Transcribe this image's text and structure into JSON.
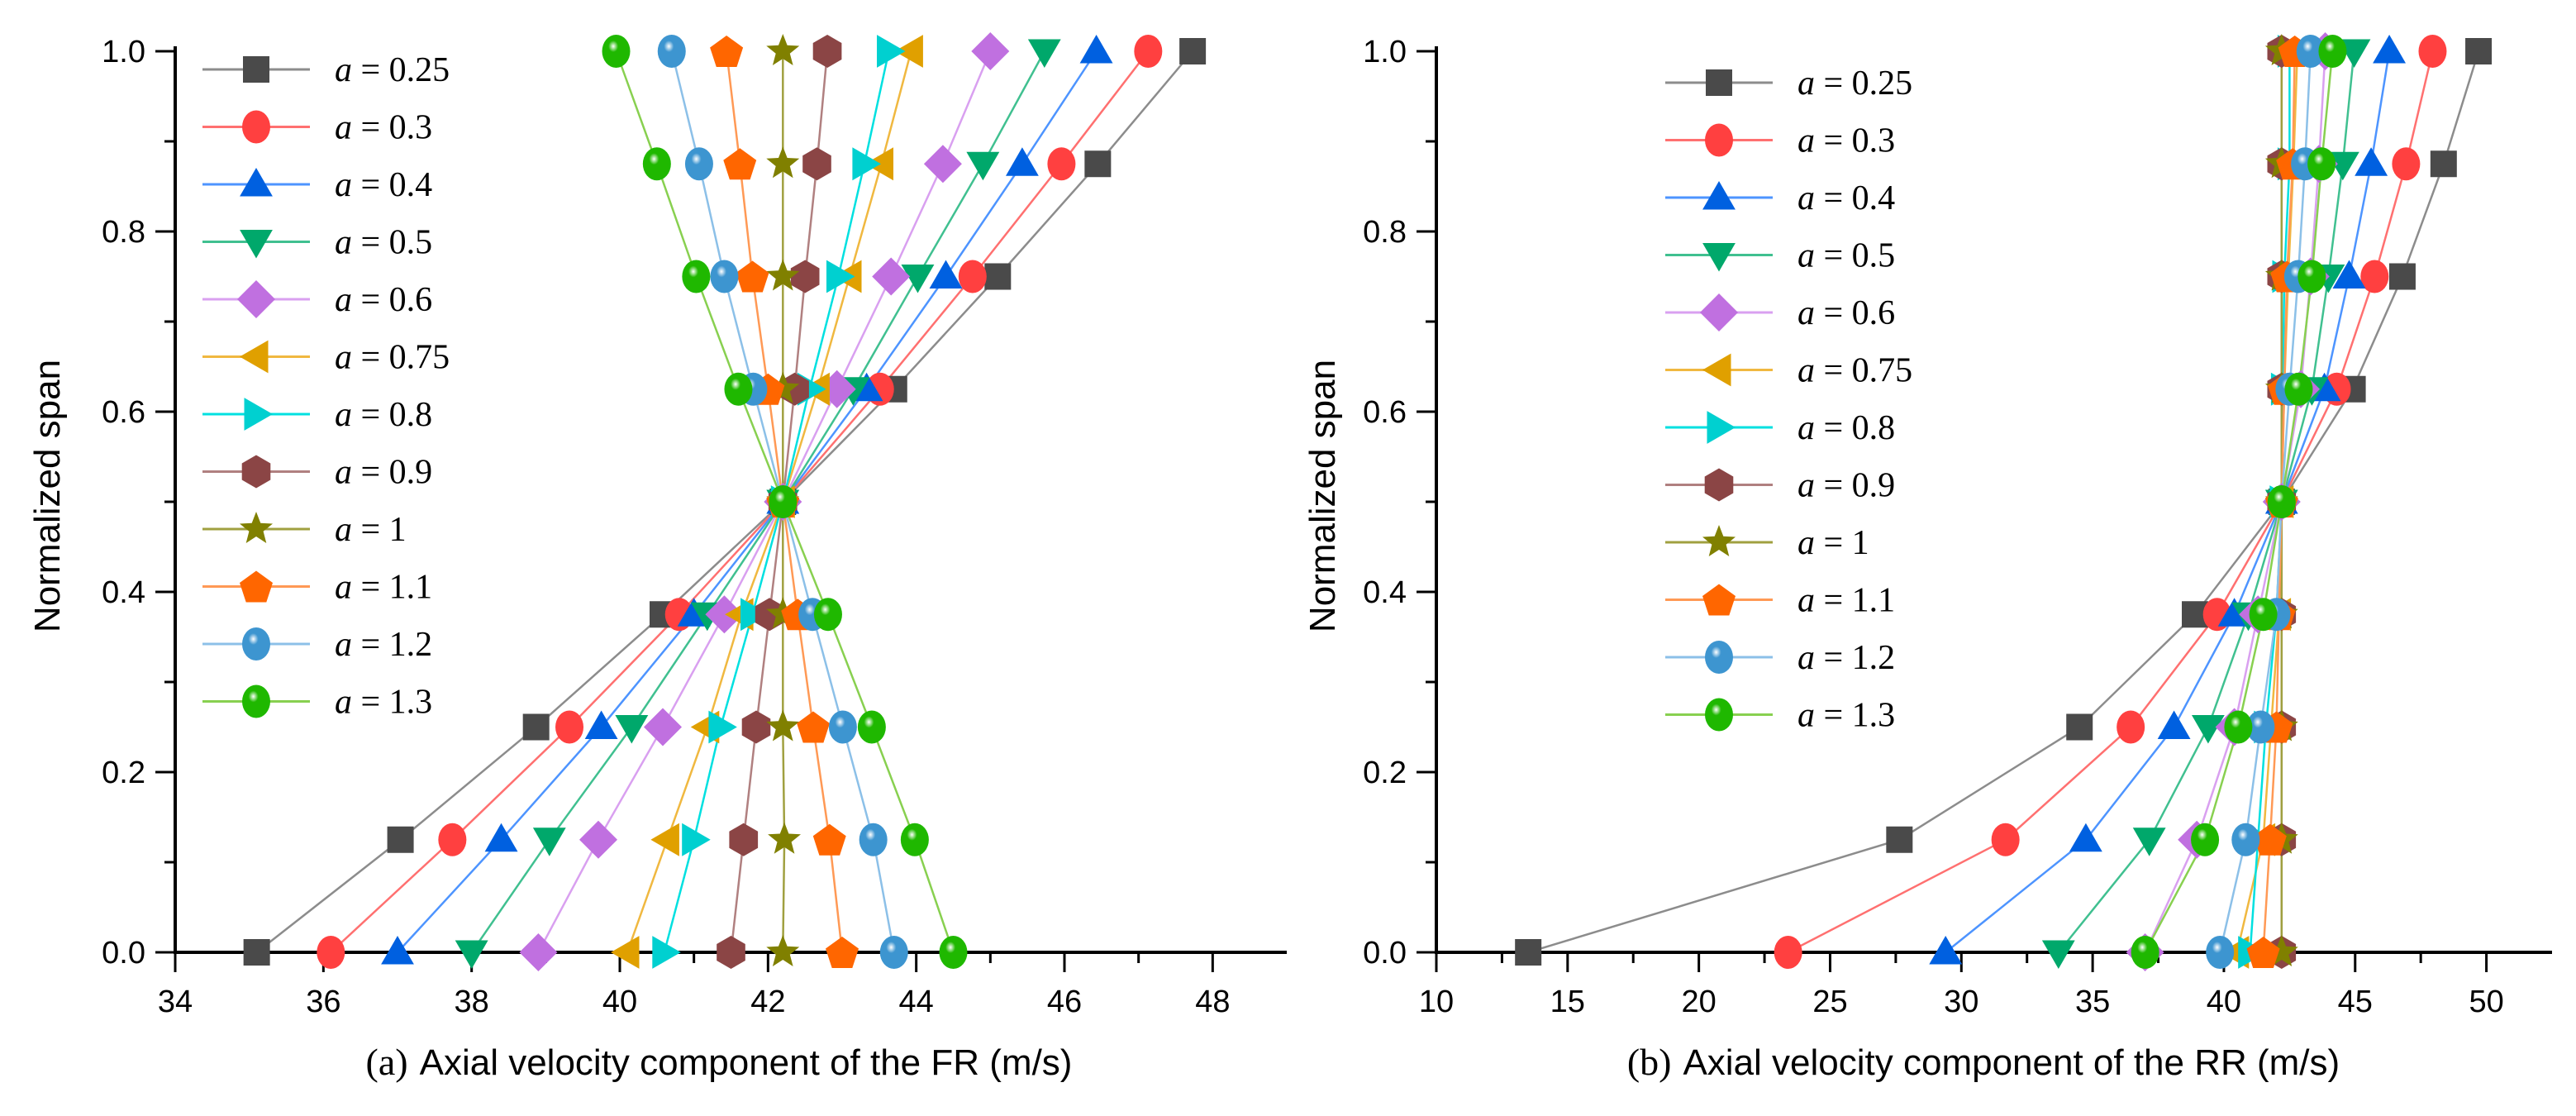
{
  "chart_data": [
    {
      "type": "line",
      "panel_id": "(a)",
      "title": "Axial velocity component of the FR (m/s)",
      "xlabel": "Axial velocity component of the FR (m/s)",
      "ylabel": "Normalized span",
      "xlim": [
        34,
        49
      ],
      "ylim": [
        0,
        1.0
      ],
      "xticks": [
        "34",
        "36",
        "38",
        "40",
        "42",
        "44",
        "46",
        "48"
      ],
      "xtick_values": [
        34,
        36,
        38,
        40,
        42,
        44,
        46,
        48
      ],
      "yticks": [
        "0.0",
        "0.2",
        "0.4",
        "0.6",
        "0.8",
        "1.0"
      ],
      "ytick_values": [
        0,
        0.2,
        0.4,
        0.6,
        0.8,
        1.0
      ],
      "legend_placement": "top-left",
      "y": [
        0,
        0.125,
        0.25,
        0.375,
        0.5,
        0.625,
        0.75,
        0.875,
        1.0
      ],
      "series": [
        {
          "name": "a = 0.25",
          "marker": "square",
          "color": "#4a4a4a",
          "line": "#8c8c8c",
          "x": [
            35.1,
            37.04,
            38.87,
            40.58,
            42.2,
            43.7,
            45.1,
            46.45,
            47.73
          ]
        },
        {
          "name": "a = 0.3",
          "marker": "circle",
          "color": "#ff4040",
          "line": "#ff7070",
          "x": [
            36.1,
            37.74,
            39.32,
            40.8,
            42.2,
            43.51,
            44.76,
            45.96,
            47.13
          ]
        },
        {
          "name": "a = 0.4",
          "marker": "triangle-up",
          "color": "#0060e0",
          "line": "#4d94ff",
          "x": [
            37.0,
            38.4,
            39.75,
            41.0,
            42.2,
            43.33,
            44.4,
            45.43,
            46.43
          ]
        },
        {
          "name": "a = 0.5",
          "marker": "triangle-down",
          "color": "#00a86b",
          "line": "#40c090",
          "x": [
            38.0,
            39.05,
            40.16,
            41.18,
            42.2,
            43.15,
            44.02,
            44.9,
            45.73
          ]
        },
        {
          "name": "a = 0.6",
          "marker": "diamond",
          "color": "#c070e0",
          "line": "#d9a0f0",
          "x": [
            38.9,
            39.71,
            40.58,
            41.41,
            42.2,
            42.93,
            43.66,
            44.36,
            45.0
          ]
        },
        {
          "name": "a = 0.75",
          "marker": "triangle-left",
          "color": "#e0a000",
          "line": "#f0b840",
          "x": [
            40.1,
            40.64,
            41.18,
            41.64,
            42.2,
            42.67,
            43.1,
            43.53,
            43.93
          ]
        },
        {
          "name": "a = 0.8",
          "marker": "triangle-right",
          "color": "#00d0d0",
          "line": "#00e0e0",
          "x": [
            40.6,
            41.0,
            41.36,
            41.79,
            42.2,
            42.56,
            42.95,
            43.3,
            43.63
          ]
        },
        {
          "name": "a = 0.9",
          "marker": "hexagon",
          "color": "#8b4545",
          "line": "#b08080",
          "x": [
            41.5,
            41.67,
            41.84,
            42.02,
            42.2,
            42.36,
            42.5,
            42.66,
            42.8
          ]
        },
        {
          "name": "a = 1",
          "marker": "star",
          "color": "#808000",
          "line": "#a0a040",
          "x": [
            42.2,
            42.22,
            42.2,
            42.2,
            42.2,
            42.2,
            42.2,
            42.2,
            42.2
          ]
        },
        {
          "name": "a = 1.1",
          "marker": "pentagon",
          "color": "#ff6600",
          "line": "#ff9955",
          "x": [
            43.0,
            42.83,
            42.61,
            42.4,
            42.2,
            42.0,
            41.79,
            41.62,
            41.44
          ]
        },
        {
          "name": "a = 1.2",
          "marker": "sphere",
          "color": "#3d95d0",
          "line": "#8cc0e8",
          "x": [
            43.7,
            43.42,
            43.01,
            42.6,
            42.2,
            41.8,
            41.41,
            41.07,
            40.7
          ]
        },
        {
          "name": "a = 1.3",
          "marker": "sphere",
          "color": "#1fb800",
          "line": "#88d050",
          "x": [
            44.5,
            43.98,
            43.4,
            42.81,
            42.2,
            41.6,
            41.03,
            40.5,
            39.95
          ]
        }
      ]
    },
    {
      "type": "line",
      "panel_id": "(b)",
      "title": "Axial velocity component of the RR (m/s)",
      "xlabel": "Axial velocity component of the RR (m/s)",
      "ylabel": "Normalized span",
      "xlim": [
        10,
        52.5
      ],
      "ylim": [
        0,
        1.0
      ],
      "xticks": [
        "10",
        "15",
        "20",
        "25",
        "30",
        "35",
        "40",
        "45",
        "50"
      ],
      "xtick_values": [
        10,
        15,
        20,
        25,
        30,
        35,
        40,
        45,
        50
      ],
      "yticks": [
        "0.0",
        "0.2",
        "0.4",
        "0.6",
        "0.8",
        "1.0"
      ],
      "ytick_values": [
        0,
        0.2,
        0.4,
        0.6,
        0.8,
        1.0
      ],
      "legend_placement": "top-center",
      "y": [
        0,
        0.125,
        0.25,
        0.375,
        0.5,
        0.625,
        0.75,
        0.875,
        1.0
      ],
      "series": [
        {
          "name": "a = 0.25",
          "marker": "square",
          "color": "#4a4a4a",
          "line": "#8c8c8c",
          "x": [
            13.5,
            27.64,
            34.5,
            38.9,
            42.2,
            44.9,
            46.8,
            48.37,
            49.7
          ]
        },
        {
          "name": "a = 0.3",
          "marker": "circle",
          "color": "#ff4040",
          "line": "#ff7070",
          "x": [
            23.4,
            31.68,
            36.45,
            39.74,
            42.2,
            44.3,
            45.74,
            46.94,
            47.95
          ]
        },
        {
          "name": "a = 0.4",
          "marker": "triangle-up",
          "color": "#0060e0",
          "line": "#4d94ff",
          "x": [
            29.4,
            34.74,
            38.1,
            40.4,
            42.2,
            43.83,
            44.77,
            45.61,
            46.3
          ]
        },
        {
          "name": "a = 0.5",
          "marker": "triangle-down",
          "color": "#00a86b",
          "line": "#40c090",
          "x": [
            33.7,
            37.16,
            39.4,
            40.93,
            42.2,
            43.35,
            43.98,
            44.53,
            44.96
          ]
        },
        {
          "name": "a = 0.6",
          "marker": "diamond",
          "color": "#c070e0",
          "line": "#d9a0f0",
          "x": [
            37.0,
            38.97,
            40.4,
            41.3,
            42.2,
            42.93,
            43.3,
            43.62,
            43.86
          ]
        },
        {
          "name": "a = 0.75",
          "marker": "triangle-left",
          "color": "#e0a000",
          "line": "#f0b840",
          "x": [
            40.5,
            41.5,
            41.8,
            42.1,
            42.2,
            42.3,
            42.45,
            42.65,
            42.8
          ]
        },
        {
          "name": "a = 0.8",
          "marker": "triangle-right",
          "color": "#00d0d0",
          "line": "#00e0e0",
          "x": [
            41.0,
            41.3,
            41.6,
            42.0,
            42.2,
            42.25,
            42.3,
            42.5,
            42.5
          ]
        },
        {
          "name": "a = 0.9",
          "marker": "hexagon",
          "color": "#8b4545",
          "line": "#b08080",
          "x": [
            42.2,
            42.2,
            42.2,
            42.2,
            42.2,
            42.2,
            42.2,
            42.2,
            42.2
          ]
        },
        {
          "name": "a = 1",
          "marker": "star",
          "color": "#808000",
          "line": "#a0a040",
          "x": [
            42.2,
            42.2,
            42.2,
            42.2,
            42.2,
            42.2,
            42.2,
            42.2,
            42.2
          ]
        },
        {
          "name": "a = 1.1",
          "marker": "pentagon",
          "color": "#ff6600",
          "line": "#ff9955",
          "x": [
            41.5,
            41.76,
            42.0,
            42.1,
            42.2,
            42.3,
            42.4,
            42.62,
            42.7
          ]
        },
        {
          "name": "a = 1.2",
          "marker": "sphere",
          "color": "#3d95d0",
          "line": "#8cc0e8",
          "x": [
            39.85,
            40.83,
            41.4,
            42.0,
            42.2,
            42.5,
            42.83,
            43.09,
            43.3
          ]
        },
        {
          "name": "a = 1.3",
          "marker": "sphere",
          "color": "#1fb800",
          "line": "#88d050",
          "x": [
            37.0,
            39.28,
            40.55,
            41.5,
            42.2,
            42.85,
            43.35,
            43.72,
            44.14
          ]
        }
      ]
    }
  ]
}
